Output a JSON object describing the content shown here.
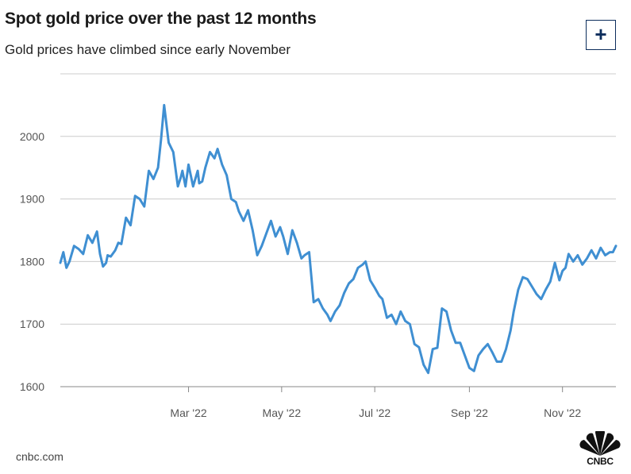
{
  "header": {
    "title": "Spot gold price over the past 12 months",
    "subtitle": "Gold prices have climbed since early November",
    "expand_label": "+"
  },
  "footer": {
    "source": "cnbc.com",
    "logo_text": "CNBC"
  },
  "colors": {
    "line": "#3f8fd2",
    "grid": "#cccccc",
    "axis": "#555555",
    "button": "#0c2d5c"
  },
  "chart_data": {
    "type": "line",
    "title": "Spot gold price over the past 12 months",
    "xlabel": "",
    "ylabel": "",
    "x_range": [
      "2021-12-07",
      "2022-12-06"
    ],
    "ylim": [
      1600,
      2100
    ],
    "y_ticks": [
      1600,
      1700,
      1800,
      1900,
      2000
    ],
    "x_ticks": [
      {
        "date": "2022-03-01",
        "label": "Mar '22"
      },
      {
        "date": "2022-05-01",
        "label": "May '22"
      },
      {
        "date": "2022-07-01",
        "label": "Jul '22"
      },
      {
        "date": "2022-09-01",
        "label": "Sep '22"
      },
      {
        "date": "2022-11-01",
        "label": "Nov '22"
      }
    ],
    "grid": true,
    "series": [
      {
        "name": "Spot gold price",
        "x": [
          "2021-12-07",
          "2021-12-09",
          "2021-12-11",
          "2021-12-13",
          "2021-12-16",
          "2021-12-19",
          "2021-12-22",
          "2021-12-25",
          "2021-12-28",
          "2021-12-31",
          "2022-01-02",
          "2022-01-04",
          "2022-01-06",
          "2022-01-07",
          "2022-01-09",
          "2022-01-12",
          "2022-01-14",
          "2022-01-16",
          "2022-01-19",
          "2022-01-22",
          "2022-01-25",
          "2022-01-28",
          "2022-01-31",
          "2022-02-03",
          "2022-02-06",
          "2022-02-09",
          "2022-02-11",
          "2022-02-13",
          "2022-02-16",
          "2022-02-19",
          "2022-02-22",
          "2022-02-24",
          "2022-02-25",
          "2022-02-27",
          "2022-03-01",
          "2022-03-04",
          "2022-03-07",
          "2022-03-08",
          "2022-03-10",
          "2022-03-12",
          "2022-03-15",
          "2022-03-18",
          "2022-03-20",
          "2022-03-23",
          "2022-03-26",
          "2022-03-29",
          "2022-04-01",
          "2022-04-03",
          "2022-04-06",
          "2022-04-09",
          "2022-04-12",
          "2022-04-15",
          "2022-04-18",
          "2022-04-21",
          "2022-04-24",
          "2022-04-27",
          "2022-04-30",
          "2022-05-02",
          "2022-05-05",
          "2022-05-08",
          "2022-05-11",
          "2022-05-14",
          "2022-05-16",
          "2022-05-19",
          "2022-05-22",
          "2022-05-25",
          "2022-05-28",
          "2022-05-31",
          "2022-06-02",
          "2022-06-05",
          "2022-06-08",
          "2022-06-11",
          "2022-06-14",
          "2022-06-17",
          "2022-06-20",
          "2022-06-23",
          "2022-06-25",
          "2022-06-28",
          "2022-07-01",
          "2022-07-04",
          "2022-07-06",
          "2022-07-09",
          "2022-07-12",
          "2022-07-15",
          "2022-07-18",
          "2022-07-21",
          "2022-07-24",
          "2022-07-27",
          "2022-07-30",
          "2022-08-02",
          "2022-08-05",
          "2022-08-08",
          "2022-08-11",
          "2022-08-14",
          "2022-08-17",
          "2022-08-20",
          "2022-08-23",
          "2022-08-26",
          "2022-08-29",
          "2022-09-01",
          "2022-09-04",
          "2022-09-07",
          "2022-09-10",
          "2022-09-13",
          "2022-09-16",
          "2022-09-19",
          "2022-09-22",
          "2022-09-25",
          "2022-09-28",
          "2022-09-30",
          "2022-10-03",
          "2022-10-06",
          "2022-10-09",
          "2022-10-12",
          "2022-10-15",
          "2022-10-18",
          "2022-10-21",
          "2022-10-24",
          "2022-10-27",
          "2022-10-30",
          "2022-11-01",
          "2022-11-03",
          "2022-11-05",
          "2022-11-08",
          "2022-11-11",
          "2022-11-14",
          "2022-11-17",
          "2022-11-20",
          "2022-11-23",
          "2022-11-26",
          "2022-11-29",
          "2022-12-02",
          "2022-12-04",
          "2022-12-06"
        ],
        "values": [
          1798,
          1815,
          1790,
          1800,
          1825,
          1820,
          1812,
          1842,
          1830,
          1848,
          1812,
          1792,
          1798,
          1810,
          1808,
          1818,
          1830,
          1828,
          1870,
          1858,
          1905,
          1900,
          1888,
          1945,
          1932,
          1950,
          1995,
          2050,
          1990,
          1975,
          1920,
          1935,
          1945,
          1920,
          1955,
          1920,
          1945,
          1925,
          1928,
          1950,
          1975,
          1965,
          1980,
          1955,
          1938,
          1900,
          1895,
          1880,
          1865,
          1882,
          1850,
          1810,
          1825,
          1845,
          1865,
          1840,
          1855,
          1840,
          1812,
          1850,
          1830,
          1805,
          1810,
          1815,
          1735,
          1740,
          1725,
          1715,
          1705,
          1720,
          1730,
          1750,
          1765,
          1772,
          1790,
          1795,
          1800,
          1770,
          1758,
          1745,
          1740,
          1710,
          1715,
          1700,
          1720,
          1705,
          1700,
          1668,
          1663,
          1635,
          1622,
          1660,
          1662,
          1725,
          1720,
          1690,
          1670,
          1670,
          1650,
          1630,
          1625,
          1650,
          1660,
          1668,
          1655,
          1640,
          1640,
          1660,
          1690,
          1720,
          1755,
          1775,
          1772,
          1760,
          1748,
          1740,
          1755,
          1768,
          1798,
          1770,
          1785,
          1790,
          1812,
          1800,
          1810,
          1795,
          1805,
          1818,
          1805,
          1822,
          1810,
          1815,
          1815,
          1825
        ]
      }
    ]
  }
}
